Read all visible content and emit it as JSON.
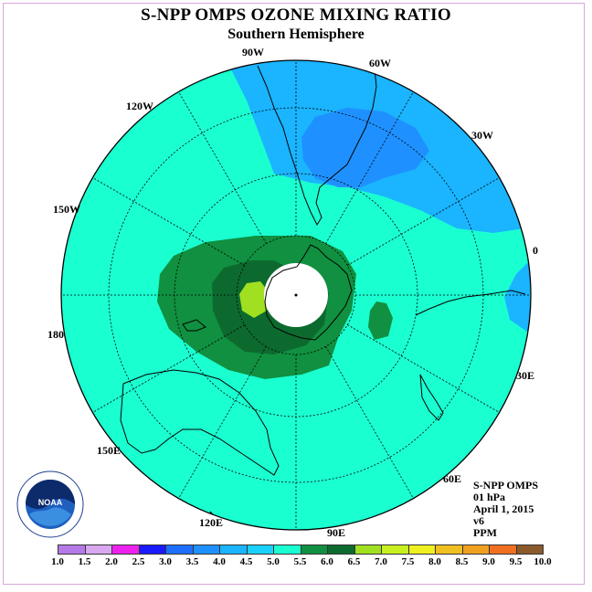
{
  "header": {
    "title": "S-NPP OMPS OZONE MIXING RATIO",
    "subtitle": "Southern Hemisphere"
  },
  "longitude_labels": [
    {
      "id": "90w",
      "text": "90W"
    },
    {
      "id": "60w",
      "text": "60W"
    },
    {
      "id": "30w",
      "text": "30W"
    },
    {
      "id": "0",
      "text": "0"
    },
    {
      "id": "30e",
      "text": "30E"
    },
    {
      "id": "60e",
      "text": "60E"
    },
    {
      "id": "90e",
      "text": "90E"
    },
    {
      "id": "120e",
      "text": "120E"
    },
    {
      "id": "150e",
      "text": "150E"
    },
    {
      "id": "180",
      "text": "180"
    },
    {
      "id": "150w",
      "text": "150W"
    },
    {
      "id": "120w",
      "text": "120W"
    }
  ],
  "info": {
    "instrument": "S-NPP OMPS",
    "level": "01 hPa",
    "date": "April 1, 2015",
    "version": "v6",
    "units": "PPM"
  },
  "logo": {
    "text": "NOAA"
  },
  "colorbar": {
    "ticks": [
      "1.0",
      "1.5",
      "2.0",
      "2.5",
      "3.0",
      "3.5",
      "4.0",
      "4.5",
      "5.0",
      "5.5",
      "6.0",
      "6.5",
      "7.0",
      "7.5",
      "8.0",
      "8.5",
      "9.0",
      "9.5",
      "10.0"
    ],
    "colors": [
      "#b57ae8",
      "#d9a8f0",
      "#ee22ee",
      "#1a1aff",
      "#1f6fff",
      "#1f90ff",
      "#1ab4ff",
      "#1ad0ff",
      "#1affd0",
      "#109040",
      "#0d6a2e",
      "#a0e020",
      "#c8f020",
      "#f0f020",
      "#f0c020",
      "#f0a020",
      "#f07020",
      "#f00000",
      "#8b5a2b"
    ],
    "map_fill": {
      "background": "#1affd0",
      "light_blue": "#1ab4ff",
      "blue": "#1f90ff",
      "green": "#109040",
      "dark_green": "#0d6a2e",
      "yellow_green": "#a0e020"
    }
  }
}
